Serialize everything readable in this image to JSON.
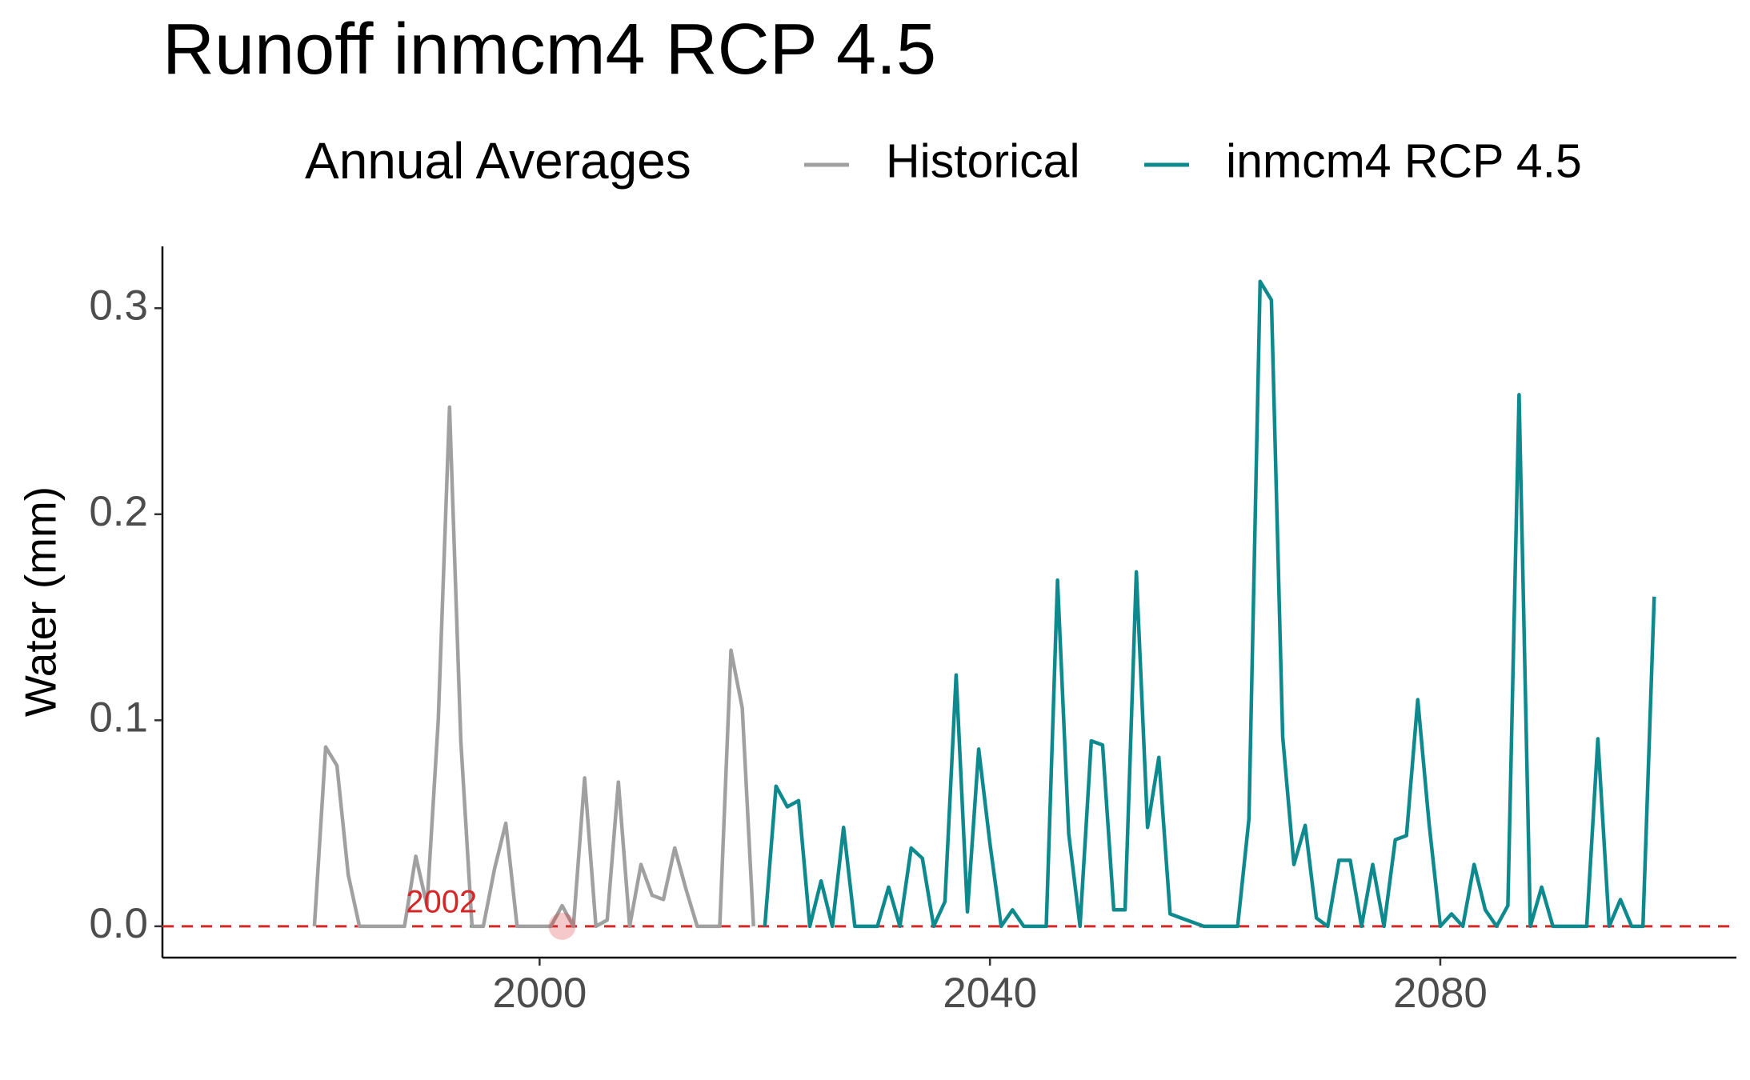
{
  "chart_data": {
    "type": "line",
    "title": "Runoff inmcm4 RCP 4.5",
    "legend_title": "Annual Averages",
    "y_label": "Water (mm)",
    "xlim": [
      1966.5,
      2106.3
    ],
    "ylim": [
      -0.0152,
      0.33
    ],
    "xticks": [
      2000,
      2040,
      2080
    ],
    "yticks": [
      {
        "value": 0,
        "label": "0.0"
      },
      0.1,
      0.2,
      0.3
    ],
    "grid": false,
    "legend_position": "top",
    "hline": {
      "value": 0,
      "color": "#d62728"
    },
    "annotation": {
      "text": "2002",
      "x": 2002,
      "y": 0,
      "color": "#d62728"
    },
    "series": [
      {
        "name": "Historical",
        "color": "#a0a0a0",
        "x": [
          1980,
          1981,
          1982,
          1983,
          1984,
          1985,
          1986,
          1987,
          1988,
          1989,
          1990,
          1991,
          1992,
          1993,
          1994,
          1995,
          1996,
          1997,
          1998,
          1999,
          2000,
          2001,
          2002,
          2003,
          2004,
          2005,
          2006,
          2007,
          2008,
          2009,
          2010,
          2011,
          2012,
          2013,
          2014,
          2015,
          2016,
          2017,
          2018,
          2019
        ],
        "values": [
          0,
          0.087,
          0.078,
          0.025,
          0,
          0,
          0,
          0,
          0,
          0.034,
          0.01,
          0.1,
          0.252,
          0.09,
          0,
          0,
          0.028,
          0.05,
          0,
          0,
          0,
          0,
          0.01,
          0,
          0.072,
          0,
          0.003,
          0.07,
          0,
          0.03,
          0.015,
          0.013,
          0.038,
          0.018,
          0,
          0,
          0,
          0.134,
          0.106,
          0
        ]
      },
      {
        "name": "inmcm4 RCP 4.5",
        "color": "#0e8a8e",
        "x": [
          2020,
          2021,
          2022,
          2023,
          2024,
          2025,
          2026,
          2027,
          2028,
          2029,
          2030,
          2031,
          2032,
          2033,
          2034,
          2035,
          2036,
          2037,
          2038,
          2039,
          2040,
          2041,
          2042,
          2043,
          2044,
          2045,
          2046,
          2047,
          2048,
          2049,
          2050,
          2051,
          2052,
          2053,
          2054,
          2055,
          2056,
          2057,
          2058,
          2059,
          2060,
          2061,
          2062,
          2063,
          2064,
          2065,
          2066,
          2067,
          2068,
          2069,
          2070,
          2071,
          2072,
          2073,
          2074,
          2075,
          2076,
          2077,
          2078,
          2079,
          2080,
          2081,
          2082,
          2083,
          2084,
          2085,
          2086,
          2087,
          2088,
          2089,
          2090,
          2091,
          2092,
          2093,
          2094,
          2095,
          2096,
          2097,
          2098,
          2099
        ],
        "values": [
          0,
          0.068,
          0.058,
          0.061,
          0,
          0.022,
          0,
          0.048,
          0,
          0,
          0,
          0.019,
          0,
          0.038,
          0.033,
          0,
          0.012,
          0.122,
          0.007,
          0.086,
          0.04,
          0,
          0.008,
          0,
          0,
          0,
          0.168,
          0.045,
          0,
          0.09,
          0.088,
          0.008,
          0.008,
          0.172,
          0.048,
          0.082,
          0.006,
          0.004,
          0.002,
          0,
          0,
          0,
          0,
          0.052,
          0.313,
          0.304,
          0.092,
          0.03,
          0.049,
          0.004,
          0,
          0.032,
          0.032,
          0,
          0.03,
          0,
          0.042,
          0.044,
          0.11,
          0.05,
          0,
          0.006,
          0,
          0.03,
          0.008,
          0,
          0.01,
          0.258,
          0,
          0.019,
          0,
          0,
          0,
          0,
          0.091,
          0,
          0.013,
          0,
          0,
          0.16
        ]
      }
    ]
  }
}
